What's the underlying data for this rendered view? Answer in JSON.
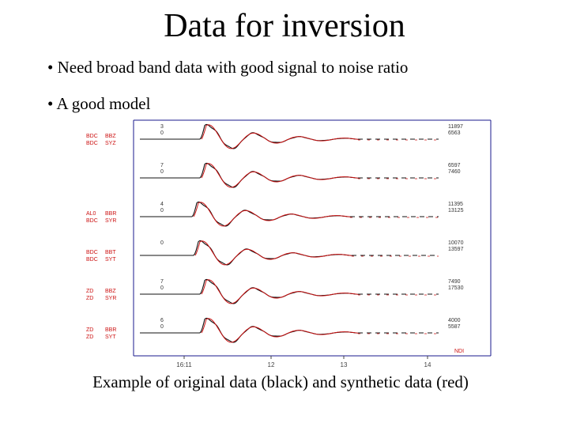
{
  "slide": {
    "title": "Data for inversion",
    "bullets": [
      "• Need broad band data with good signal to noise ratio",
      "• A good model"
    ],
    "caption": "Example of original data (black) and synthetic data (red)"
  },
  "figure": {
    "traces": [
      {
        "sta": [
          "BDC",
          "BDC"
        ],
        "comp": [
          "BBZ",
          "SYZ"
        ],
        "code": [
          "3",
          "0"
        ],
        "right": [
          "11897",
          "6563"
        ]
      },
      {
        "sta": [
          "",
          ""
        ],
        "comp": [
          "",
          ""
        ],
        "code": [
          "7",
          "0"
        ],
        "right": [
          "6597",
          "7460"
        ]
      },
      {
        "sta": [
          "AL0",
          "BDC"
        ],
        "comp": [
          "BBR",
          "SYR"
        ],
        "code": [
          "4",
          "0"
        ],
        "right": [
          "11395",
          "13125"
        ]
      },
      {
        "sta": [
          "BDC",
          "BDC"
        ],
        "comp": [
          "BBT",
          "SYT"
        ],
        "code": [
          "0",
          ""
        ],
        "right": [
          "10070",
          "13597"
        ]
      },
      {
        "sta": [
          "ZD",
          "ZD"
        ],
        "comp": [
          "BBZ",
          "SYR"
        ],
        "code": [
          "7",
          "0"
        ],
        "right": [
          "7490",
          "17530"
        ]
      },
      {
        "sta": [
          "ZD",
          "ZD"
        ],
        "comp": [
          "BBR",
          "SYT"
        ],
        "code": [
          "6",
          "0"
        ],
        "right": [
          "4000",
          "5587"
        ]
      }
    ],
    "time_ticks": [
      "16:11",
      "12",
      "13",
      "14"
    ],
    "units_label": "NDI",
    "colors": {
      "observed": "#111111",
      "synthetic": "#cc1111",
      "frame": "#1a1a8c",
      "stationText": "#cc1111",
      "codeText": "#333333"
    }
  }
}
